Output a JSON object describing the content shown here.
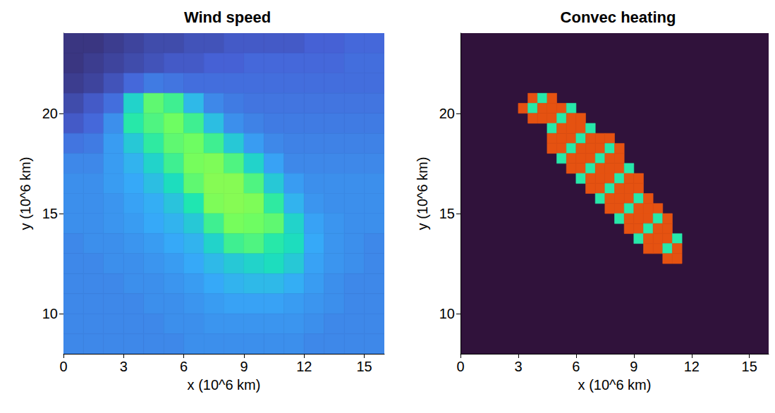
{
  "chart_data": [
    {
      "type": "heatmap",
      "title": "Wind speed",
      "x_label": "x (10^6 km)",
      "y_label": "y (10^6 km)",
      "xlim": [
        0,
        16
      ],
      "ylim": [
        8,
        24
      ],
      "xticks": [
        0,
        3,
        6,
        9,
        12,
        15
      ],
      "yticks": [
        10,
        15,
        20
      ],
      "zlim": [
        0,
        1
      ],
      "x": [
        0.5,
        1.5,
        2.5,
        3.5,
        4.5,
        5.5,
        6.5,
        7.5,
        8.5,
        9.5,
        10.5,
        11.5,
        12.5,
        13.5,
        14.5,
        15.5
      ],
      "y": [
        23.5,
        22.5,
        21.5,
        20.5,
        19.5,
        18.5,
        17.5,
        16.5,
        15.5,
        14.5,
        13.5,
        12.5,
        11.5,
        10.5,
        9.5,
        8.5
      ],
      "z": [
        [
          0.05,
          0.05,
          0.06,
          0.07,
          0.08,
          0.08,
          0.09,
          0.09,
          0.1,
          0.1,
          0.1,
          0.1,
          0.11,
          0.11,
          0.12,
          0.12
        ],
        [
          0.05,
          0.06,
          0.07,
          0.08,
          0.09,
          0.1,
          0.1,
          0.11,
          0.11,
          0.12,
          0.12,
          0.12,
          0.12,
          0.12,
          0.13,
          0.13
        ],
        [
          0.06,
          0.07,
          0.09,
          0.12,
          0.15,
          0.14,
          0.13,
          0.13,
          0.13,
          0.13,
          0.13,
          0.13,
          0.13,
          0.13,
          0.13,
          0.13
        ],
        [
          0.08,
          0.1,
          0.13,
          0.3,
          0.42,
          0.38,
          0.25,
          0.17,
          0.15,
          0.14,
          0.14,
          0.14,
          0.14,
          0.14,
          0.14,
          0.14
        ],
        [
          0.1,
          0.12,
          0.18,
          0.35,
          0.4,
          0.44,
          0.38,
          0.26,
          0.18,
          0.16,
          0.15,
          0.15,
          0.15,
          0.15,
          0.15,
          0.15
        ],
        [
          0.14,
          0.15,
          0.2,
          0.28,
          0.36,
          0.42,
          0.44,
          0.38,
          0.28,
          0.2,
          0.17,
          0.16,
          0.16,
          0.16,
          0.16,
          0.16
        ],
        [
          0.17,
          0.17,
          0.2,
          0.24,
          0.3,
          0.38,
          0.45,
          0.46,
          0.4,
          0.3,
          0.21,
          0.17,
          0.17,
          0.17,
          0.17,
          0.17
        ],
        [
          0.18,
          0.18,
          0.2,
          0.22,
          0.26,
          0.32,
          0.42,
          0.47,
          0.47,
          0.4,
          0.28,
          0.2,
          0.18,
          0.18,
          0.18,
          0.18
        ],
        [
          0.18,
          0.18,
          0.19,
          0.21,
          0.23,
          0.27,
          0.34,
          0.46,
          0.47,
          0.46,
          0.36,
          0.24,
          0.19,
          0.18,
          0.18,
          0.18
        ],
        [
          0.18,
          0.18,
          0.19,
          0.2,
          0.22,
          0.24,
          0.28,
          0.38,
          0.45,
          0.44,
          0.42,
          0.3,
          0.21,
          0.19,
          0.18,
          0.18
        ],
        [
          0.17,
          0.18,
          0.18,
          0.19,
          0.2,
          0.22,
          0.24,
          0.3,
          0.38,
          0.4,
          0.35,
          0.32,
          0.22,
          0.19,
          0.18,
          0.17
        ],
        [
          0.17,
          0.17,
          0.18,
          0.18,
          0.19,
          0.2,
          0.22,
          0.25,
          0.28,
          0.3,
          0.32,
          0.28,
          0.21,
          0.19,
          0.18,
          0.17
        ],
        [
          0.17,
          0.17,
          0.17,
          0.18,
          0.18,
          0.19,
          0.2,
          0.22,
          0.24,
          0.25,
          0.25,
          0.23,
          0.2,
          0.18,
          0.17,
          0.17
        ],
        [
          0.17,
          0.17,
          0.17,
          0.17,
          0.18,
          0.18,
          0.19,
          0.2,
          0.21,
          0.21,
          0.21,
          0.2,
          0.19,
          0.18,
          0.17,
          0.17
        ],
        [
          0.17,
          0.17,
          0.17,
          0.17,
          0.17,
          0.18,
          0.18,
          0.19,
          0.19,
          0.19,
          0.19,
          0.19,
          0.18,
          0.17,
          0.17,
          0.17
        ],
        [
          0.17,
          0.17,
          0.17,
          0.17,
          0.17,
          0.17,
          0.18,
          0.18,
          0.18,
          0.18,
          0.18,
          0.18,
          0.17,
          0.17,
          0.17,
          0.17
        ]
      ]
    },
    {
      "type": "heatmap",
      "title": "Convec heating",
      "x_label": "x (10^6 km)",
      "y_label": "y (10^6 km)",
      "xlim": [
        0,
        16
      ],
      "ylim": [
        8,
        24
      ],
      "xticks": [
        0,
        3,
        6,
        9,
        12,
        15
      ],
      "yticks": [
        10,
        15,
        20
      ],
      "zlim": [
        0,
        1
      ],
      "cells": [
        [
          3.75,
          20.75,
          0.82
        ],
        [
          4.25,
          20.75,
          0.35
        ],
        [
          4.75,
          20.75,
          0.82
        ],
        [
          3.25,
          20.25,
          0.82
        ],
        [
          3.75,
          20.25,
          0.35
        ],
        [
          4.25,
          20.25,
          0.82
        ],
        [
          4.75,
          20.25,
          0.82
        ],
        [
          5.25,
          20.25,
          0.82
        ],
        [
          5.75,
          20.25,
          0.35
        ],
        [
          3.75,
          19.75,
          0.82
        ],
        [
          4.25,
          19.75,
          0.82
        ],
        [
          4.75,
          19.75,
          0.82
        ],
        [
          5.25,
          19.75,
          0.35
        ],
        [
          5.75,
          19.75,
          0.82
        ],
        [
          6.25,
          19.75,
          0.82
        ],
        [
          4.75,
          19.25,
          0.35
        ],
        [
          5.25,
          19.25,
          0.82
        ],
        [
          5.75,
          19.25,
          0.82
        ],
        [
          6.25,
          19.25,
          0.82
        ],
        [
          6.75,
          19.25,
          0.35
        ],
        [
          4.75,
          18.75,
          0.82
        ],
        [
          5.25,
          18.75,
          0.82
        ],
        [
          5.75,
          18.75,
          0.82
        ],
        [
          6.25,
          18.75,
          0.35
        ],
        [
          6.75,
          18.75,
          0.82
        ],
        [
          7.25,
          18.75,
          0.82
        ],
        [
          7.75,
          18.75,
          0.82
        ],
        [
          4.75,
          18.25,
          0.82
        ],
        [
          5.25,
          18.25,
          0.82
        ],
        [
          5.75,
          18.25,
          0.35
        ],
        [
          6.25,
          18.25,
          0.82
        ],
        [
          6.75,
          18.25,
          0.82
        ],
        [
          7.25,
          18.25,
          0.82
        ],
        [
          7.75,
          18.25,
          0.35
        ],
        [
          8.25,
          18.25,
          0.82
        ],
        [
          5.25,
          17.75,
          0.35
        ],
        [
          5.75,
          17.75,
          0.82
        ],
        [
          6.25,
          17.75,
          0.82
        ],
        [
          6.75,
          17.75,
          0.82
        ],
        [
          7.25,
          17.75,
          0.35
        ],
        [
          7.75,
          17.75,
          0.82
        ],
        [
          8.25,
          17.75,
          0.82
        ],
        [
          5.75,
          17.25,
          0.82
        ],
        [
          6.25,
          17.25,
          0.82
        ],
        [
          6.75,
          17.25,
          0.35
        ],
        [
          7.25,
          17.25,
          0.82
        ],
        [
          7.75,
          17.25,
          0.82
        ],
        [
          8.25,
          17.25,
          0.82
        ],
        [
          8.75,
          17.25,
          0.35
        ],
        [
          6.25,
          16.75,
          0.35
        ],
        [
          6.75,
          16.75,
          0.82
        ],
        [
          7.25,
          16.75,
          0.82
        ],
        [
          7.75,
          16.75,
          0.82
        ],
        [
          8.25,
          16.75,
          0.35
        ],
        [
          8.75,
          16.75,
          0.82
        ],
        [
          9.25,
          16.75,
          0.82
        ],
        [
          6.75,
          16.25,
          0.82
        ],
        [
          7.25,
          16.25,
          0.82
        ],
        [
          7.75,
          16.25,
          0.35
        ],
        [
          8.25,
          16.25,
          0.82
        ],
        [
          8.75,
          16.25,
          0.82
        ],
        [
          9.25,
          16.25,
          0.82
        ],
        [
          7.25,
          15.75,
          0.35
        ],
        [
          7.75,
          15.75,
          0.82
        ],
        [
          8.25,
          15.75,
          0.82
        ],
        [
          8.75,
          15.75,
          0.82
        ],
        [
          9.25,
          15.75,
          0.35
        ],
        [
          9.75,
          15.75,
          0.82
        ],
        [
          7.75,
          15.25,
          0.82
        ],
        [
          8.25,
          15.25,
          0.82
        ],
        [
          8.75,
          15.25,
          0.35
        ],
        [
          9.25,
          15.25,
          0.82
        ],
        [
          9.75,
          15.25,
          0.82
        ],
        [
          10.25,
          15.25,
          0.82
        ],
        [
          8.25,
          14.75,
          0.35
        ],
        [
          8.75,
          14.75,
          0.82
        ],
        [
          9.25,
          14.75,
          0.82
        ],
        [
          9.75,
          14.75,
          0.82
        ],
        [
          10.25,
          14.75,
          0.35
        ],
        [
          10.75,
          14.75,
          0.82
        ],
        [
          8.75,
          14.25,
          0.82
        ],
        [
          9.25,
          14.25,
          0.82
        ],
        [
          9.75,
          14.25,
          0.35
        ],
        [
          10.25,
          14.25,
          0.82
        ],
        [
          10.75,
          14.25,
          0.82
        ],
        [
          9.25,
          13.75,
          0.35
        ],
        [
          9.75,
          13.75,
          0.82
        ],
        [
          10.25,
          13.75,
          0.82
        ],
        [
          10.75,
          13.75,
          0.82
        ],
        [
          11.25,
          13.75,
          0.35
        ],
        [
          9.75,
          13.25,
          0.82
        ],
        [
          10.25,
          13.25,
          0.82
        ],
        [
          10.75,
          13.25,
          0.35
        ],
        [
          11.25,
          13.25,
          0.82
        ],
        [
          10.75,
          12.75,
          0.82
        ],
        [
          11.25,
          12.75,
          0.82
        ]
      ]
    }
  ]
}
